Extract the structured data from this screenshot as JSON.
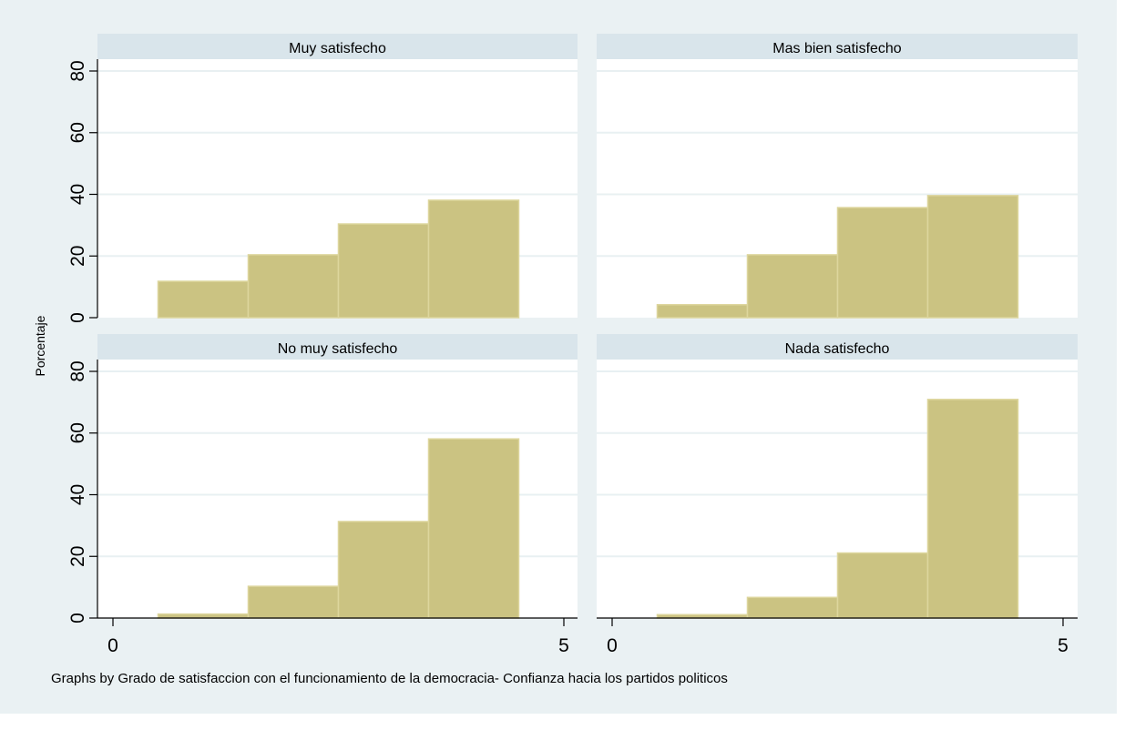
{
  "chart_data": {
    "type": "bar",
    "subtype": "histogram-by-group",
    "ylabel": "Porcentaje",
    "xlabel": "",
    "note": "Graphs by Grado de satisfaccion con el funcionamiento de la democracia- Confianza hacia los partidos politicos",
    "xlim": [
      0,
      5
    ],
    "ylim": [
      0,
      80
    ],
    "xticks": [
      "0",
      "5"
    ],
    "yticks": [
      "0",
      "20",
      "40",
      "60",
      "80"
    ],
    "grid": true,
    "bin_centers": [
      1,
      2,
      3,
      4
    ],
    "bin_width": 1,
    "colors": {
      "background": "#eaf1f3",
      "header": "#d9e5eb",
      "plot": "#ffffff",
      "grid": "#e8f0f2",
      "bar_fill": "#cbc382",
      "bar_border": "#ddd69d",
      "axis": "#000000"
    },
    "panels": [
      {
        "title": "Muy satisfecho",
        "values": [
          11.8,
          20.4,
          30.4,
          38.1
        ]
      },
      {
        "title": "Mas bien satisfecho",
        "values": [
          4.2,
          20.4,
          35.7,
          39.6
        ]
      },
      {
        "title": "No muy satisfecho",
        "values": [
          1.3,
          10.3,
          31.3,
          58.1
        ]
      },
      {
        "title": "Nada satisfecho",
        "values": [
          1.1,
          6.7,
          21.1,
          70.9
        ]
      }
    ]
  }
}
